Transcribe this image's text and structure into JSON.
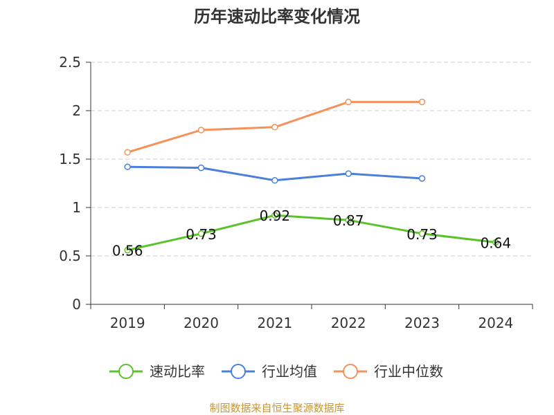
{
  "chart_data": {
    "type": "line",
    "title": "历年速动比率变化情况",
    "categories": [
      "2019",
      "2020",
      "2021",
      "2022",
      "2023",
      "2024"
    ],
    "yticks": [
      "0",
      "0.5",
      "1",
      "1.5",
      "2",
      "2.5"
    ],
    "ylim": [
      0,
      2.5
    ],
    "grid": true,
    "legend_position": "bottom",
    "series": [
      {
        "name": "速动比率",
        "color": "#5cc22b",
        "values": [
          0.56,
          0.73,
          0.92,
          0.87,
          0.73,
          0.64
        ],
        "show_labels": true
      },
      {
        "name": "行业均值",
        "color": "#4a7fdb",
        "values": [
          1.42,
          1.41,
          1.28,
          1.35,
          1.3,
          null
        ],
        "show_labels": false
      },
      {
        "name": "行业中位数",
        "color": "#f5915a",
        "values": [
          1.57,
          1.8,
          1.83,
          2.09,
          2.09,
          null
        ],
        "show_labels": false
      }
    ]
  },
  "source_note": "制图数据来自恒生聚源数据库"
}
